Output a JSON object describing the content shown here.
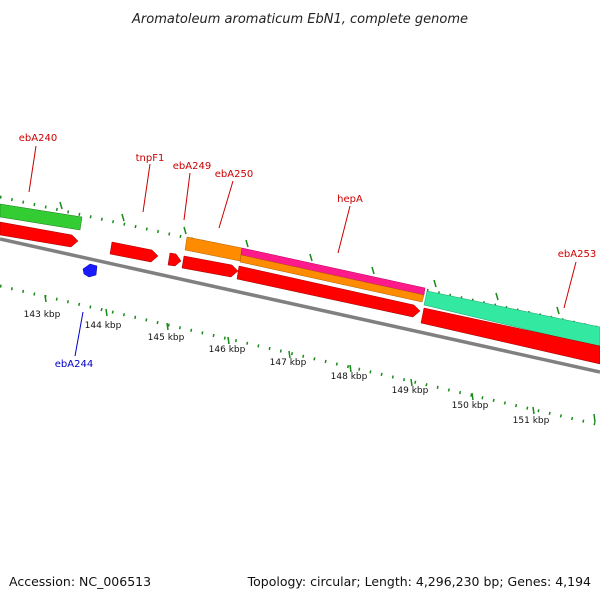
{
  "title": "Aromatoleum aromaticum EbN1, complete genome",
  "footer": {
    "accession": "Accession: NC_006513",
    "summary": "Topology: circular; Length: 4,296,230 bp; Genes: 4,194"
  },
  "colors": {
    "backbone": "#808080",
    "tick": "#1a8a1a",
    "forward_cds": "#ff0000",
    "reverse_cds": "#ff0000",
    "rna": "#1a1aff",
    "label_forward": "#cc0000",
    "label_reverse": "#0000cc",
    "hepA_outer": "#ff1a8c",
    "hepA_inner": "#ff8c00",
    "ebA240": "#33cc33",
    "ebA253": "#33e8a0"
  },
  "tick_labels": [
    "143 kbp",
    "144 kbp",
    "145 kbp",
    "146 kbp",
    "147 kbp",
    "148 kbp",
    "149 kbp",
    "150 kbp",
    "151 kbp"
  ],
  "gene_labels": [
    {
      "name": "ebA240",
      "strand": "forward"
    },
    {
      "name": "tnpF1",
      "strand": "forward"
    },
    {
      "name": "ebA249",
      "strand": "forward"
    },
    {
      "name": "ebA250",
      "strand": "forward"
    },
    {
      "name": "hepA",
      "strand": "forward"
    },
    {
      "name": "ebA253",
      "strand": "forward"
    },
    {
      "name": "ebA244",
      "strand": "reverse"
    }
  ]
}
